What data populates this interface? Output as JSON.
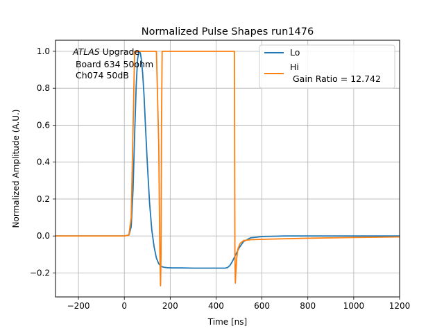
{
  "chart_data": {
    "type": "line",
    "title": "Normalized Pulse Shapes run1476",
    "xlabel": "Time [ns]",
    "ylabel": "Normalized Amplitude (A.U.)",
    "xlim": [
      -300,
      1200
    ],
    "ylim": [
      -0.33,
      1.06
    ],
    "xticks": [
      -200,
      0,
      200,
      400,
      600,
      800,
      1000,
      1200
    ],
    "xtick_labels": [
      "−200",
      "0",
      "200",
      "400",
      "600",
      "800",
      "1000",
      "1200"
    ],
    "yticks": [
      -0.2,
      0.0,
      0.2,
      0.4,
      0.6,
      0.8,
      1.0
    ],
    "ytick_labels": [
      "−0.2",
      "0.0",
      "0.2",
      "0.4",
      "0.6",
      "0.8",
      "1.0"
    ],
    "grid": true,
    "legend": "top-right",
    "annotation": {
      "line1_italic": "ATLAS",
      "line1_rest": " Upgrade",
      "line2": " Board 634 50ohm",
      "line3": " Ch074 50dB"
    },
    "series": [
      {
        "name": "Lo",
        "color": "#1f77b4",
        "x": [
          -300,
          0,
          20,
          30,
          38,
          45,
          52,
          58,
          64,
          70,
          75,
          80,
          86,
          92,
          100,
          110,
          120,
          130,
          140,
          150,
          160,
          175,
          190,
          210,
          250,
          300,
          350,
          400,
          440,
          450,
          460,
          470,
          480,
          490,
          500,
          520,
          550,
          600,
          700,
          800,
          1000,
          1200
        ],
        "y": [
          0,
          0,
          0.005,
          0.05,
          0.25,
          0.55,
          0.82,
          0.96,
          1.0,
          0.99,
          0.95,
          0.88,
          0.76,
          0.6,
          0.4,
          0.18,
          0.03,
          -0.06,
          -0.12,
          -0.15,
          -0.165,
          -0.17,
          -0.172,
          -0.173,
          -0.173,
          -0.174,
          -0.174,
          -0.174,
          -0.174,
          -0.171,
          -0.16,
          -0.14,
          -0.115,
          -0.09,
          -0.065,
          -0.03,
          -0.01,
          -0.003,
          0,
          0,
          0,
          0
        ]
      },
      {
        "name": "Hi\n Gain Ratio = 12.742",
        "color": "#ff7f0e",
        "x": [
          -300,
          0,
          20,
          30,
          40,
          45,
          55,
          140,
          150,
          155,
          158,
          160,
          162,
          165,
          480,
          482,
          484,
          486,
          490,
          495,
          505,
          520,
          550,
          600,
          800,
          1000,
          1200
        ],
        "y": [
          0,
          0,
          0.005,
          0.1,
          0.7,
          1.0,
          1.0,
          1.0,
          0.5,
          -0.1,
          -0.27,
          -0.1,
          0.6,
          1.0,
          1.0,
          -0.1,
          -0.255,
          -0.2,
          -0.12,
          -0.07,
          -0.04,
          -0.025,
          -0.02,
          -0.018,
          -0.012,
          -0.008,
          -0.005
        ]
      }
    ]
  }
}
